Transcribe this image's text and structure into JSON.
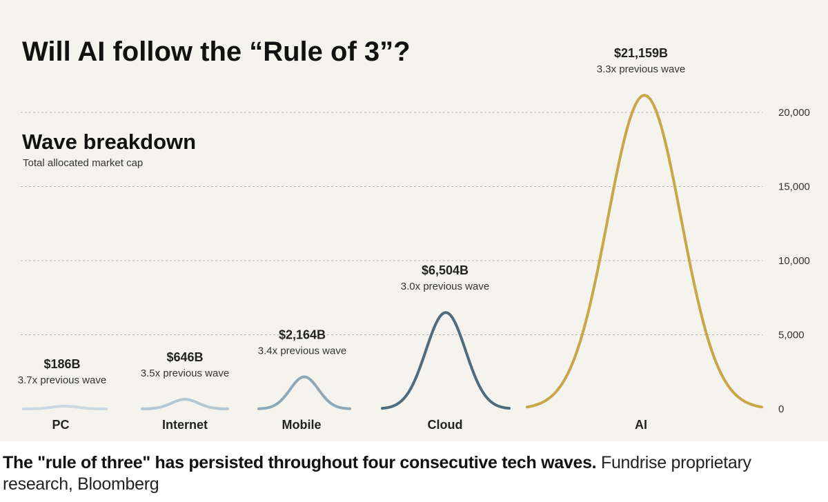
{
  "chart_data": {
    "type": "area",
    "title": "Will AI follow the “Rule of 3”?",
    "subtitle": "Wave breakdown",
    "description": "Total allocated market cap",
    "categories": [
      "PC",
      "Internet",
      "Mobile",
      "Cloud",
      "AI"
    ],
    "values": [
      186,
      646,
      2164,
      6504,
      21159
    ],
    "value_labels": [
      "$186B",
      "$646B",
      "$2,164B",
      "$6,504B",
      "$21,159B"
    ],
    "multiplier_labels": [
      "3.7x previous wave",
      "3.5x previous wave",
      "3.4x previous wave",
      "3.0x previous wave",
      "3.3x previous wave"
    ],
    "colors": [
      "#c9d8e3",
      "#b3c7d4",
      "#8fa8b8",
      "#4f6b7c",
      "#c9a648"
    ],
    "yticks": [
      0,
      5000,
      10000,
      15000,
      20000
    ],
    "ytick_labels": [
      "0",
      "5,000",
      "10,000",
      "15,000",
      "20,000"
    ],
    "ylim": [
      0,
      22000
    ],
    "grid": true,
    "axis_side": "right"
  },
  "caption": {
    "bold": "The \"rule of three\" has persisted throughout four consecutive tech waves.",
    "normal": " Fundrise proprietary research, Bloomberg"
  }
}
